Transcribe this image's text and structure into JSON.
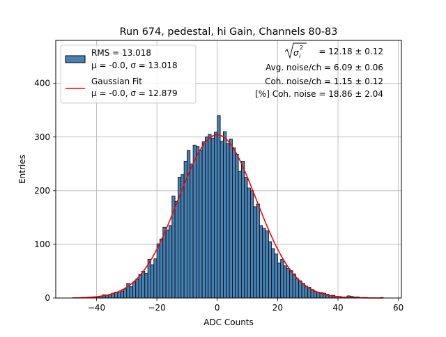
{
  "chart_data": {
    "type": "bar",
    "title": "Run 674, pedestal, hi Gain, Channels 80-83",
    "xlabel": "ADC Counts",
    "ylabel": "Entries",
    "xlim": [
      -53.5,
      61
    ],
    "ylim": [
      0,
      480
    ],
    "xticks": [
      -40,
      -20,
      0,
      20,
      40,
      60
    ],
    "yticks": [
      0,
      100,
      200,
      300,
      400
    ],
    "grid": true,
    "legend_position": "top-left",
    "bar_color": "#4682b4",
    "fit_color": "#ff0000",
    "bin_width": 1,
    "histogram": {
      "name_line1": "RMS = 13.018",
      "name_line2": "μ = -0.0, σ = 13.018",
      "bin_starts": [
        -48,
        -47,
        -46,
        -45,
        -44,
        -43,
        -42,
        -41,
        -40,
        -39,
        -38,
        -37,
        -36,
        -35,
        -34,
        -33,
        -32,
        -31,
        -30,
        -29,
        -28,
        -27,
        -26,
        -25,
        -24,
        -23,
        -22,
        -21,
        -20,
        -19,
        -18,
        -17,
        -16,
        -15,
        -14,
        -13,
        -12,
        -11,
        -10,
        -9,
        -8,
        -7,
        -6,
        -5,
        -4,
        -3,
        -2,
        -1,
        0,
        1,
        2,
        3,
        4,
        5,
        6,
        7,
        8,
        9,
        10,
        11,
        12,
        13,
        14,
        15,
        16,
        17,
        18,
        19,
        20,
        21,
        22,
        23,
        24,
        25,
        26,
        27,
        28,
        29,
        30,
        31,
        32,
        33,
        34,
        35,
        36,
        37,
        38,
        39,
        40,
        41,
        42,
        43,
        44,
        45,
        46,
        47,
        48,
        49,
        50,
        51,
        52,
        53,
        54,
        55
      ],
      "counts": [
        0,
        0,
        0,
        1,
        0,
        1,
        2,
        2,
        2,
        3,
        6,
        5,
        6,
        9,
        11,
        10,
        13,
        17,
        27,
        21,
        30,
        35,
        44,
        50,
        46,
        72,
        62,
        73,
        101,
        110,
        132,
        127,
        135,
        190,
        180,
        225,
        230,
        255,
        275,
        250,
        285,
        282,
        275,
        291,
        300,
        305,
        298,
        309,
        340,
        292,
        310,
        288,
        296,
        280,
        268,
        236,
        255,
        225,
        205,
        200,
        170,
        175,
        135,
        130,
        125,
        105,
        92,
        82,
        65,
        72,
        60,
        55,
        51,
        45,
        36,
        32,
        27,
        22,
        20,
        16,
        12,
        11,
        10,
        9,
        7,
        5,
        5,
        3,
        3,
        2,
        2,
        4,
        3,
        2,
        2,
        1,
        1,
        1,
        0,
        0,
        0,
        0,
        1,
        0,
        0,
        0
      ]
    },
    "fit": {
      "name_line1": "Gaussian Fit",
      "name_line2": "μ = -0.0, σ = 12.879",
      "mu": 0.0,
      "sigma": 12.879,
      "amplitude": 304,
      "x_range": [
        -48,
        55
      ]
    },
    "annotations": {
      "line1_value": " = 12.18 ± 0.12",
      "line2": "Avg. noise/ch = 6.09 ± 0.06",
      "line3": "Coh. noise/ch = 1.15 ± 0.12",
      "line4": "[%] Coh. noise = 18.86 ± 2.04"
    }
  }
}
